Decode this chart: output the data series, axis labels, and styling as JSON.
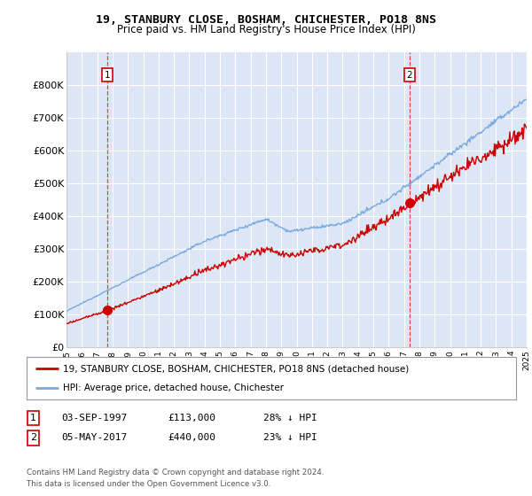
{
  "title1": "19, STANBURY CLOSE, BOSHAM, CHICHESTER, PO18 8NS",
  "title2": "Price paid vs. HM Land Registry's House Price Index (HPI)",
  "ylim": [
    0,
    900000
  ],
  "yticks": [
    0,
    100000,
    200000,
    300000,
    400000,
    500000,
    600000,
    700000,
    800000
  ],
  "ytick_labels": [
    "£0",
    "£100K",
    "£200K",
    "£300K",
    "£400K",
    "£500K",
    "£600K",
    "£700K",
    "£800K"
  ],
  "bg_color": "#dce6f5",
  "grid_color": "#ffffff",
  "sale1_year": 1997.67,
  "sale1_price": 113000,
  "sale2_year": 2017.35,
  "sale2_price": 440000,
  "sale1_label": "1",
  "sale2_label": "2",
  "legend_line1": "19, STANBURY CLOSE, BOSHAM, CHICHESTER, PO18 8NS (detached house)",
  "legend_line2": "HPI: Average price, detached house, Chichester",
  "table_row1": [
    "1",
    "03-SEP-1997",
    "£113,000",
    "28% ↓ HPI"
  ],
  "table_row2": [
    "2",
    "05-MAY-2017",
    "£440,000",
    "23% ↓ HPI"
  ],
  "footnote1": "Contains HM Land Registry data © Crown copyright and database right 2024.",
  "footnote2": "This data is licensed under the Open Government Licence v3.0.",
  "hpi_color": "#7aaadd",
  "price_color": "#cc0000",
  "vline_color": "#dd4444",
  "xmin": 1995,
  "xmax": 2025
}
